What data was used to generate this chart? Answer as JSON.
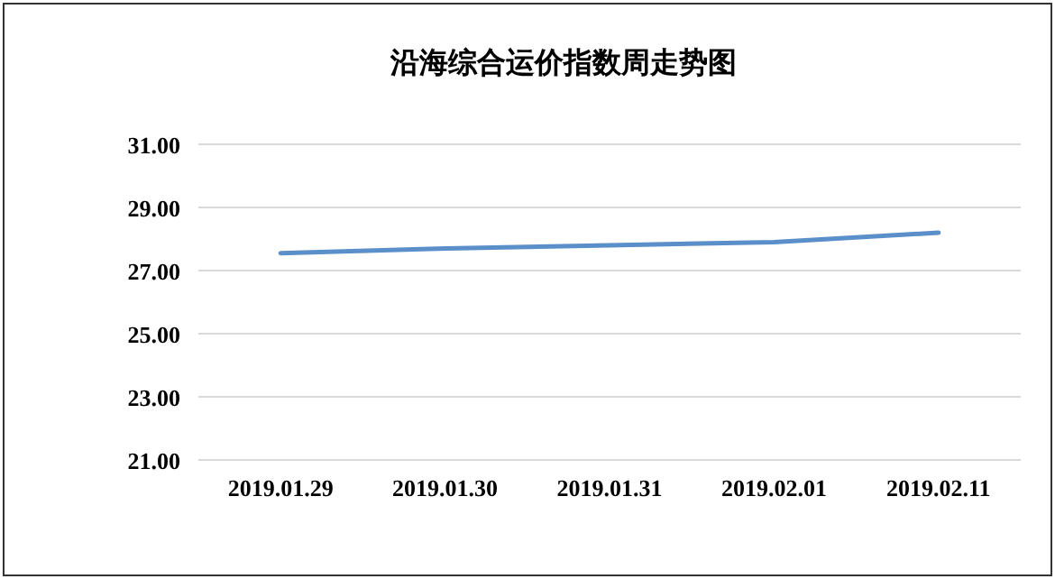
{
  "chart_data": {
    "type": "line",
    "title": "沿海综合运价指数周走势图",
    "categories": [
      "2019.01.29",
      "2019.01.30",
      "2019.01.31",
      "2019.02.01",
      "2019.02.11"
    ],
    "series": [
      {
        "color": "#5b8fc9",
        "values": [
          27.55,
          27.7,
          27.8,
          27.9,
          28.2
        ]
      }
    ],
    "ylim": [
      21,
      31
    ],
    "yticks": [
      {
        "value": 21,
        "label": "21.00"
      },
      {
        "value": 23,
        "label": "23.00"
      },
      {
        "value": 25,
        "label": "25.00"
      },
      {
        "value": 27,
        "label": "27.00"
      },
      {
        "value": 29,
        "label": "29.00"
      },
      {
        "value": 31,
        "label": "31.00"
      }
    ],
    "grid": "y",
    "marker": "none",
    "line_style": "solid"
  }
}
